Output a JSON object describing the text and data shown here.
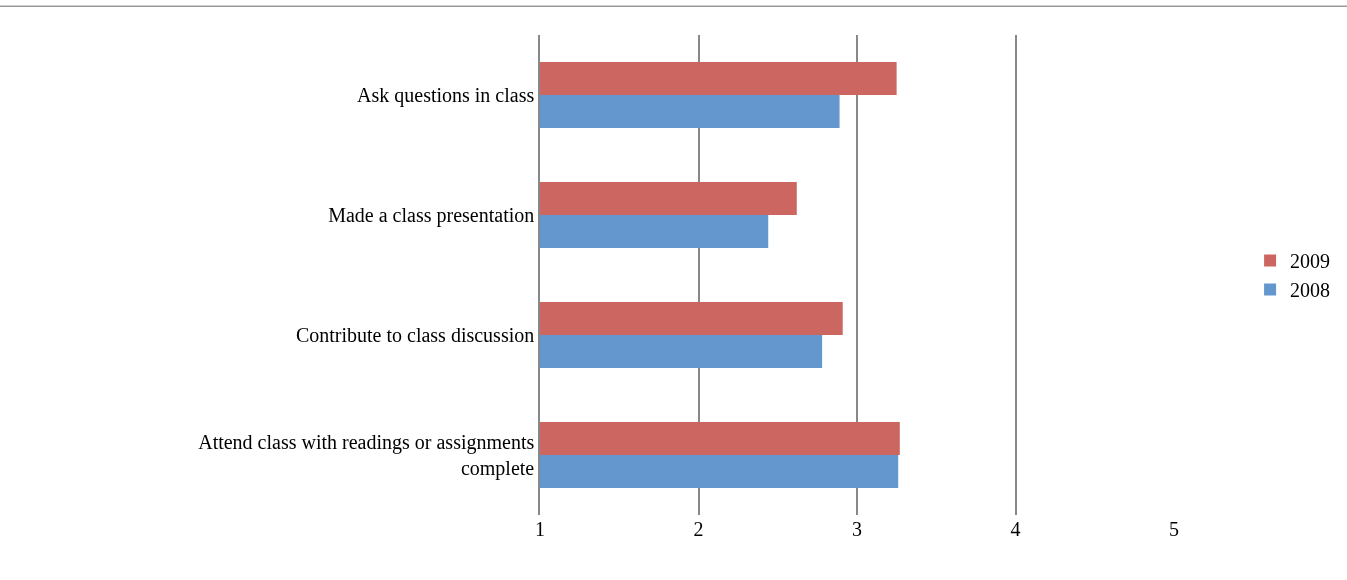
{
  "chart_data": {
    "type": "bar",
    "orientation": "horizontal",
    "categories": [
      "Ask questions in class",
      "Made a class presentation",
      "Contribute to class discussion",
      "Attend class with readings or assignments complete"
    ],
    "series": [
      {
        "name": "2009",
        "color": "#cc6660",
        "values": [
          3.25,
          2.62,
          2.91,
          3.27
        ]
      },
      {
        "name": "2008",
        "color": "#6497cd",
        "values": [
          2.89,
          2.44,
          2.78,
          3.26
        ]
      }
    ],
    "xlim": [
      1,
      5
    ],
    "xticks": [
      1,
      2,
      3,
      4,
      5
    ],
    "grid": "x",
    "legend": "right"
  }
}
